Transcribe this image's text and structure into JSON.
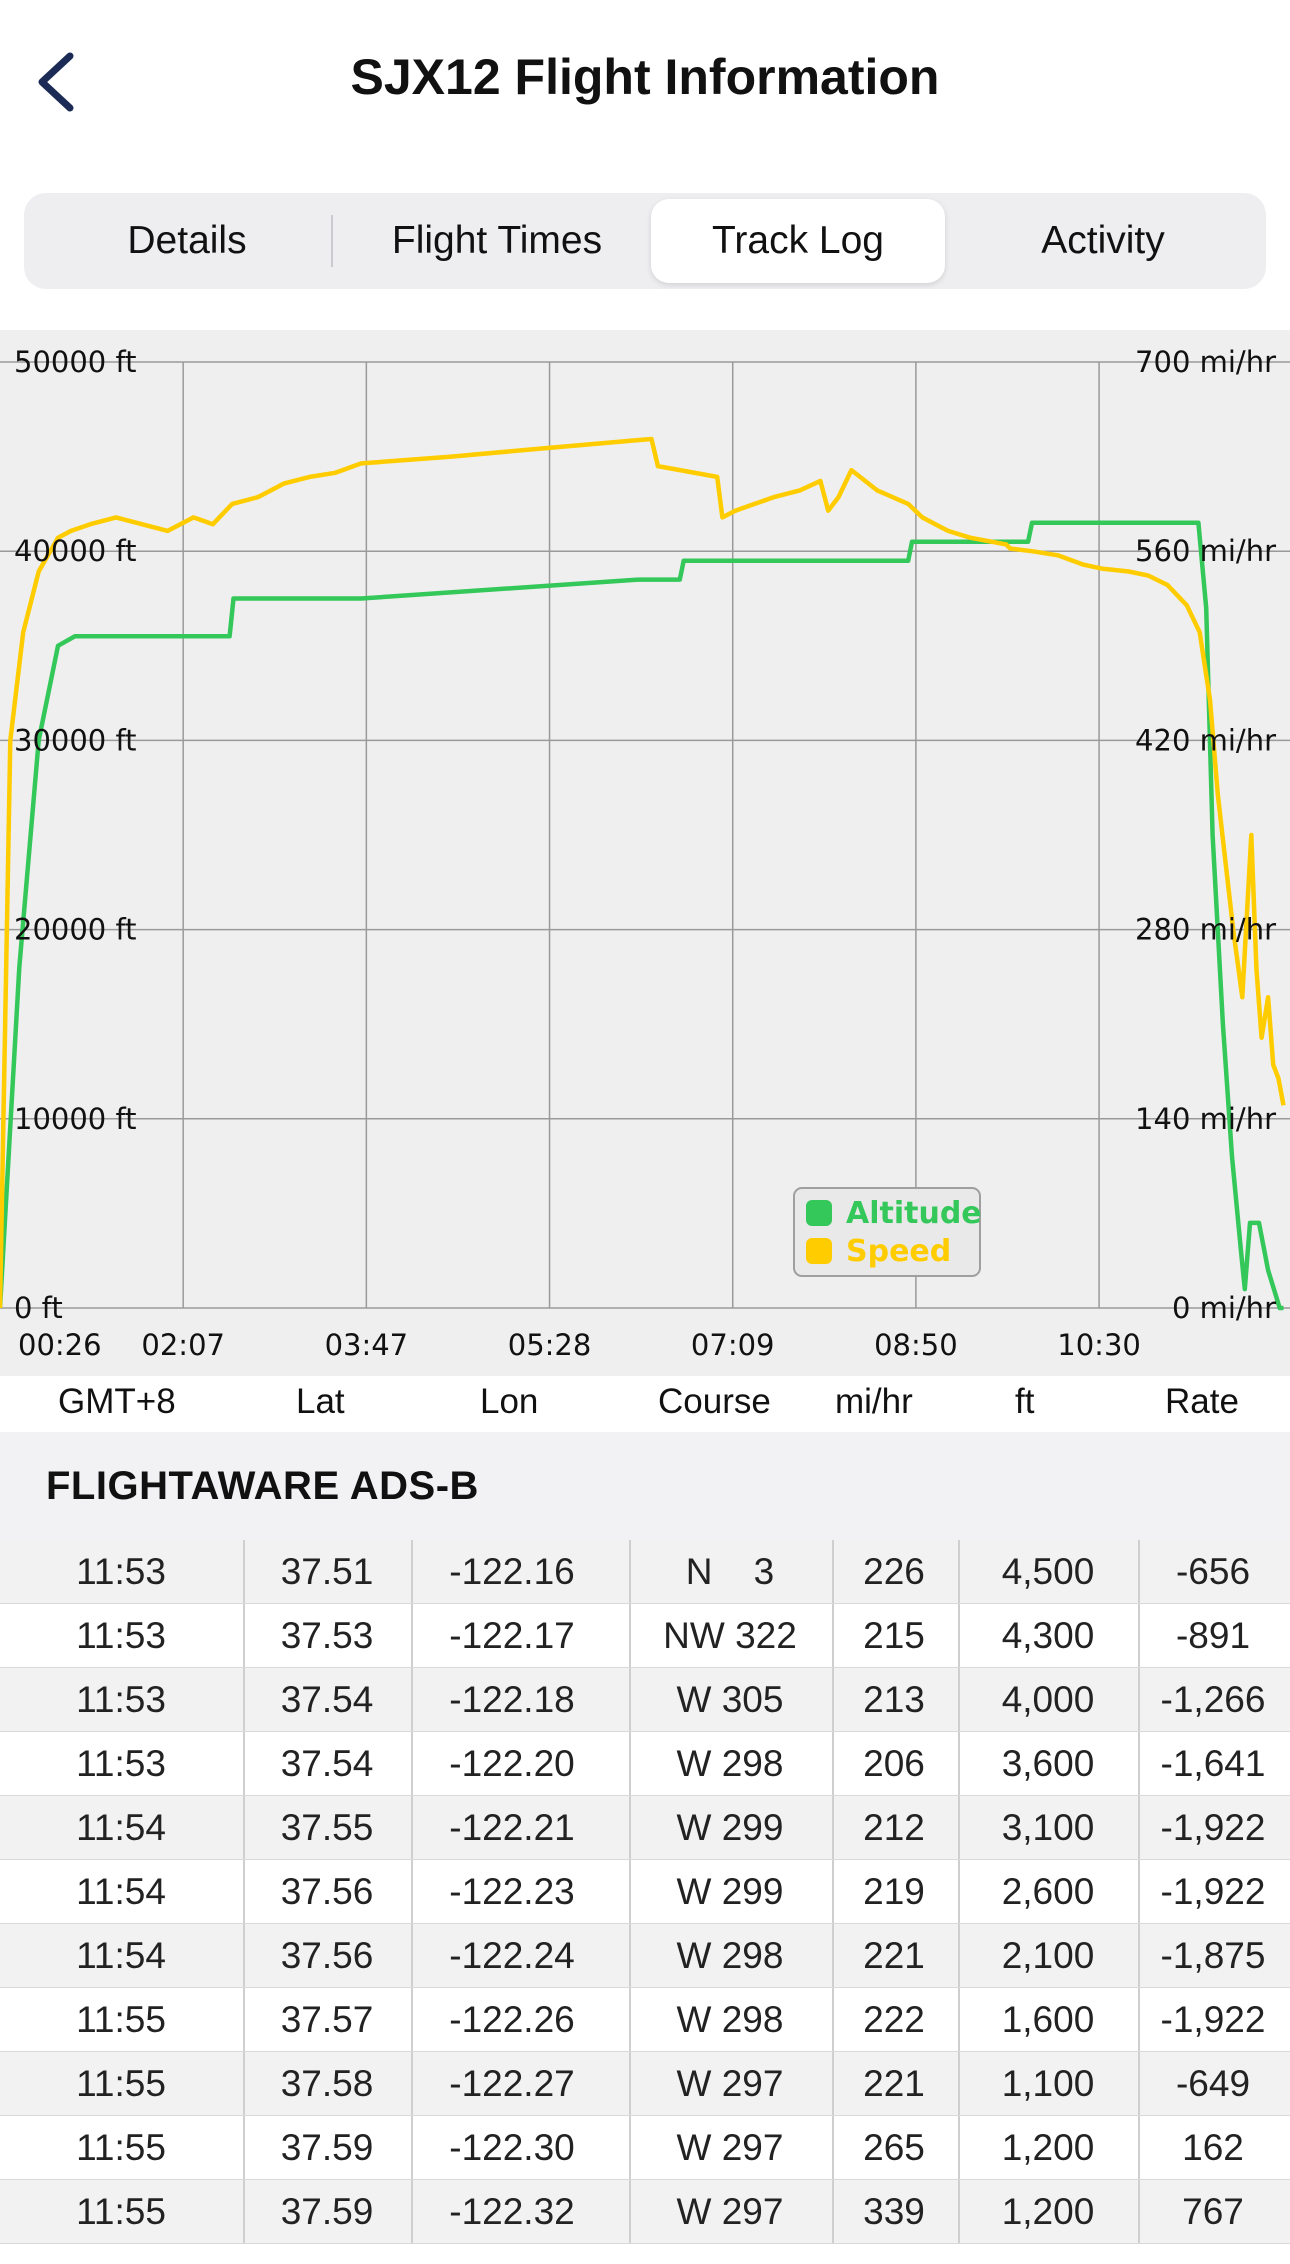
{
  "header": {
    "title": "SJX12 Flight Information",
    "back_icon": "chevron-left-icon"
  },
  "tabs": [
    {
      "label": "Details",
      "active": false
    },
    {
      "label": "Flight Times",
      "active": false
    },
    {
      "label": "Track Log",
      "active": true
    },
    {
      "label": "Activity",
      "active": false
    }
  ],
  "chart_data": {
    "type": "line",
    "x_ticks": [
      "00:26",
      "02:07",
      "03:47",
      "05:28",
      "07:09",
      "08:50",
      "10:30"
    ],
    "left_axis": {
      "ticks": [
        "0 ft",
        "10000 ft",
        "20000 ft",
        "30000 ft",
        "40000 ft",
        "50000 ft"
      ],
      "ylim": [
        0,
        50000
      ]
    },
    "right_axis": {
      "ticks": [
        "0 mi/hr",
        "140 mi/hr",
        "280 mi/hr",
        "420 mi/hr",
        "560 mi/hr",
        "700 mi/hr"
      ],
      "ylim": [
        0,
        700
      ]
    },
    "xlim": [
      0,
      100
    ],
    "grid": true,
    "legend_placement": "bottom-right",
    "series": [
      {
        "name": "Altitude",
        "axis": "left",
        "color": "#34c759",
        "x": [
          0,
          1.5,
          3,
          4.5,
          5.8,
          17.8,
          18.1,
          28,
          49.5,
          52.7,
          53,
          70.4,
          70.7,
          79.7,
          80,
          92.9,
          93.5,
          94,
          94.8,
          95.5,
          96.2,
          96.5,
          96.9,
          97.6,
          98.3,
          99.2,
          99.5
        ],
        "y": [
          0,
          18000,
          30000,
          35000,
          35500,
          35500,
          37500,
          37500,
          38500,
          38500,
          39500,
          39500,
          40500,
          40500,
          41500,
          41500,
          37000,
          25000,
          15000,
          8000,
          3000,
          1000,
          4500,
          4500,
          2000,
          0,
          0
        ]
      },
      {
        "name": "Speed",
        "axis": "right",
        "color": "#ffcc00",
        "x": [
          0,
          0.8,
          1.8,
          3,
          4.5,
          5.5,
          7,
          9,
          11,
          13,
          15,
          16.5,
          18,
          20,
          22,
          24,
          26,
          28,
          35,
          42,
          48,
          50.5,
          51,
          55.6,
          56,
          57,
          58.5,
          60,
          62,
          63.6,
          64.2,
          65,
          66,
          68,
          70.4,
          71.5,
          72.5,
          73.5,
          75.2,
          78,
          78.3,
          80,
          82,
          84,
          85.5,
          87.5,
          89,
          90.5,
          92,
          93,
          93.8,
          94.4,
          95,
          95.6,
          96.3,
          97,
          97.4,
          97.8,
          98.3,
          98.7,
          99.1,
          99.5
        ],
        "y": [
          0,
          420,
          500,
          545,
          570,
          575,
          580,
          585,
          580,
          575,
          585,
          580,
          595,
          600,
          610,
          615,
          618,
          625,
          630,
          636,
          641,
          643,
          623,
          615,
          585,
          590,
          595,
          600,
          605,
          612,
          590,
          600,
          620,
          605,
          595,
          585,
          580,
          575,
          570,
          565,
          562,
          560,
          557,
          550,
          547,
          545,
          542,
          535,
          520,
          500,
          450,
          380,
          330,
          280,
          230,
          350,
          250,
          200,
          230,
          180,
          170,
          150
        ]
      }
    ]
  },
  "table": {
    "columns": [
      "GMT+8",
      "Lat",
      "Lon",
      "Course",
      "mi/hr",
      "ft",
      "Rate"
    ],
    "section_title": "FLIGHTAWARE ADS-B",
    "rows": [
      [
        "11:53",
        "37.51",
        "-122.16",
        "N    3",
        "226",
        "4,500",
        "-656"
      ],
      [
        "11:53",
        "37.53",
        "-122.17",
        "NW 322",
        "215",
        "4,300",
        "-891"
      ],
      [
        "11:53",
        "37.54",
        "-122.18",
        "W 305",
        "213",
        "4,000",
        "-1,266"
      ],
      [
        "11:53",
        "37.54",
        "-122.20",
        "W 298",
        "206",
        "3,600",
        "-1,641"
      ],
      [
        "11:54",
        "37.55",
        "-122.21",
        "W 299",
        "212",
        "3,100",
        "-1,922"
      ],
      [
        "11:54",
        "37.56",
        "-122.23",
        "W 299",
        "219",
        "2,600",
        "-1,922"
      ],
      [
        "11:54",
        "37.56",
        "-122.24",
        "W 298",
        "221",
        "2,100",
        "-1,875"
      ],
      [
        "11:55",
        "37.57",
        "-122.26",
        "W 298",
        "222",
        "1,600",
        "-1,922"
      ],
      [
        "11:55",
        "37.58",
        "-122.27",
        "W 297",
        "221",
        "1,100",
        "-649"
      ],
      [
        "11:55",
        "37.59",
        "-122.30",
        "W 297",
        "265",
        "1,200",
        "162"
      ],
      [
        "11:55",
        "37.59",
        "-122.32",
        "W 297",
        "339",
        "1,200",
        "767"
      ]
    ]
  }
}
